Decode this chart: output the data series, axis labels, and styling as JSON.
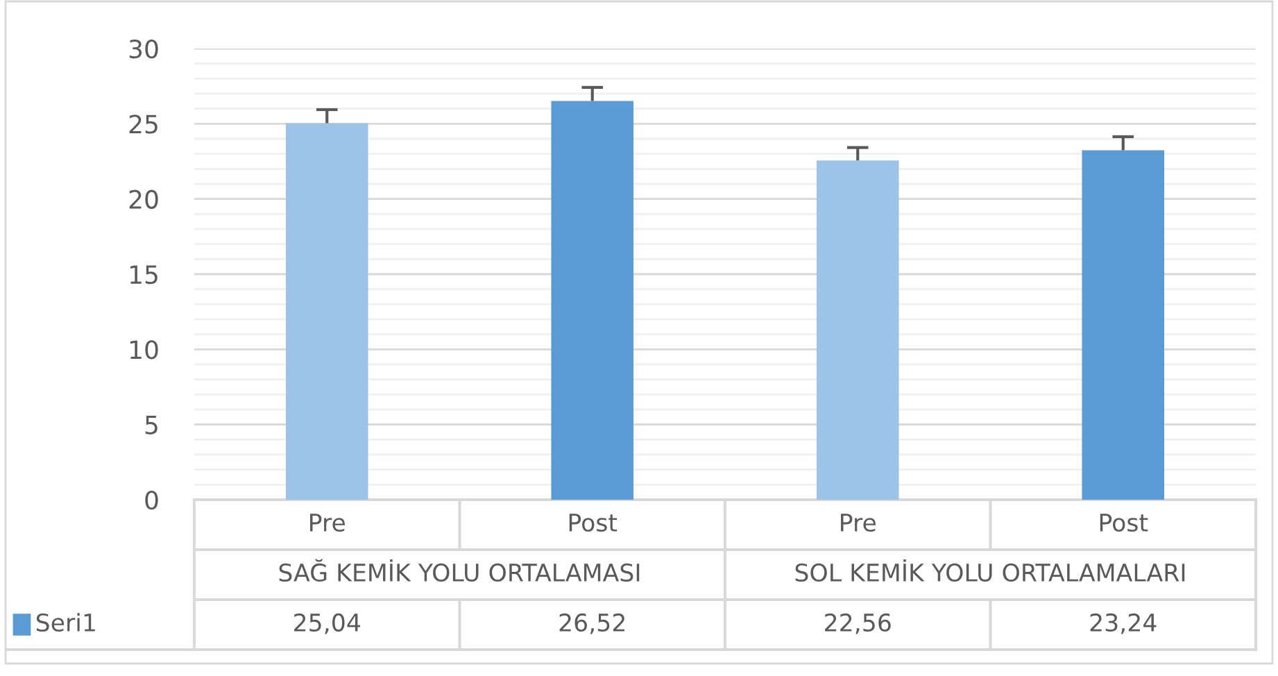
{
  "chart_data": {
    "type": "bar",
    "categories": [
      "Pre",
      "Post",
      "Pre",
      "Post"
    ],
    "series": [
      {
        "name": "Seri1",
        "color": "#5b9bd5",
        "colors": [
          "#9dc3e6",
          "#5b9bd5",
          "#9dc3e6",
          "#5b9bd5"
        ],
        "values": [
          25.04,
          26.52,
          22.56,
          23.24
        ],
        "value_labels": [
          "25,04",
          "26,52",
          "22,56",
          "23,24"
        ],
        "errors": [
          [
            25.04,
            25.94
          ],
          [
            26.52,
            27.42
          ],
          [
            22.56,
            23.42
          ],
          [
            23.24,
            24.14
          ]
        ]
      }
    ],
    "annotations": [
      "SAĞ KEMİK YOLU ORTALAMASI",
      "SOL KEMİK YOLU ORTALAMALARI"
    ],
    "ylim": [
      0,
      30
    ],
    "yticks": [
      0,
      5,
      10,
      15,
      20,
      25,
      30
    ],
    "grid": "y",
    "legend": "bottom"
  }
}
